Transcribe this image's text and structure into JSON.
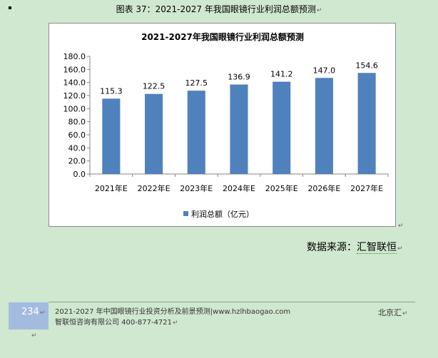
{
  "caption": "图表 37：2021-2027 年我国眼镜行业利润总额预测",
  "chart_data": {
    "type": "bar",
    "title": "2021-2027年我国眼镜行业利润总额预测",
    "categories": [
      "2021年E",
      "2022年E",
      "2023年E",
      "2024年E",
      "2025年E",
      "2026年E",
      "2027年E"
    ],
    "series": [
      {
        "name": "利润总额（亿元）",
        "values": [
          115.3,
          122.5,
          127.5,
          136.9,
          141.2,
          147.0,
          154.6
        ]
      }
    ],
    "value_labels": [
      "115.3",
      "122.5",
      "127.5",
      "136.9",
      "141.2",
      "147.0",
      "154.6"
    ],
    "ylim": [
      0,
      180
    ],
    "yticks": [
      "0.0",
      "20.0",
      "40.0",
      "60.0",
      "80.0",
      "100.0",
      "120.0",
      "140.0",
      "160.0",
      "180.0"
    ],
    "grid": false,
    "legend": "bottom",
    "bar_color": "#4f81bd"
  },
  "source": {
    "label": "数据来源：",
    "name": "汇智联恒"
  },
  "footer": {
    "page_number": "234",
    "line1": "2021-2027 年中国眼镜行业投资分析及前景预测|www.hzlhbaogao.com",
    "line2": "智联恒咨询有限公司  400-877-4721",
    "right": "北京汇"
  },
  "return_mark": "↵"
}
